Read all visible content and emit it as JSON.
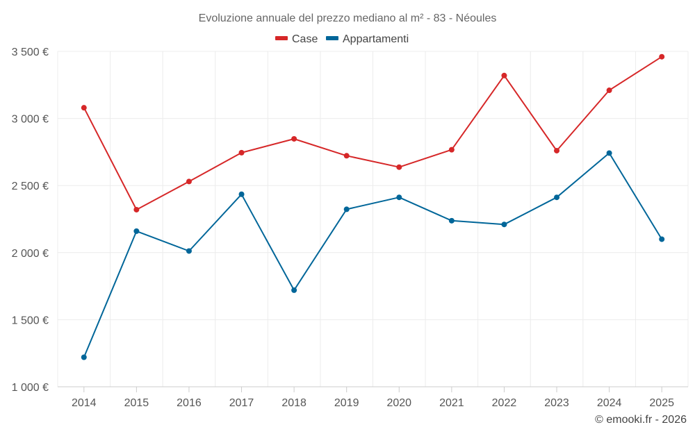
{
  "chart_data": {
    "type": "line",
    "title": "Evoluzione annuale del prezzo mediano al m² - 83 - Néoules",
    "categories": [
      "2014",
      "2015",
      "2016",
      "2017",
      "2018",
      "2019",
      "2020",
      "2021",
      "2022",
      "2023",
      "2024",
      "2025"
    ],
    "series": [
      {
        "name": "Case",
        "color": "#d62728",
        "values": [
          3080,
          2320,
          2530,
          2745,
          2848,
          2722,
          2637,
          2767,
          3320,
          2760,
          3210,
          3460
        ]
      },
      {
        "name": "Appartamenti",
        "color": "#006699",
        "values": [
          1220,
          2160,
          2012,
          2435,
          1720,
          2323,
          2412,
          2238,
          2210,
          2412,
          2742,
          2100
        ]
      }
    ],
    "ylim": [
      1000,
      3500
    ],
    "yticks": [
      1000,
      1500,
      2000,
      2500,
      3000,
      3500
    ],
    "ytick_labels": [
      "1 000 €",
      "1 500 €",
      "2 000 €",
      "2 500 €",
      "3 000 €",
      "3 500 €"
    ],
    "xlabel": "",
    "ylabel": "",
    "grid": true,
    "legend_position": "top-center",
    "credit": "© emooki.fr - 2026"
  }
}
